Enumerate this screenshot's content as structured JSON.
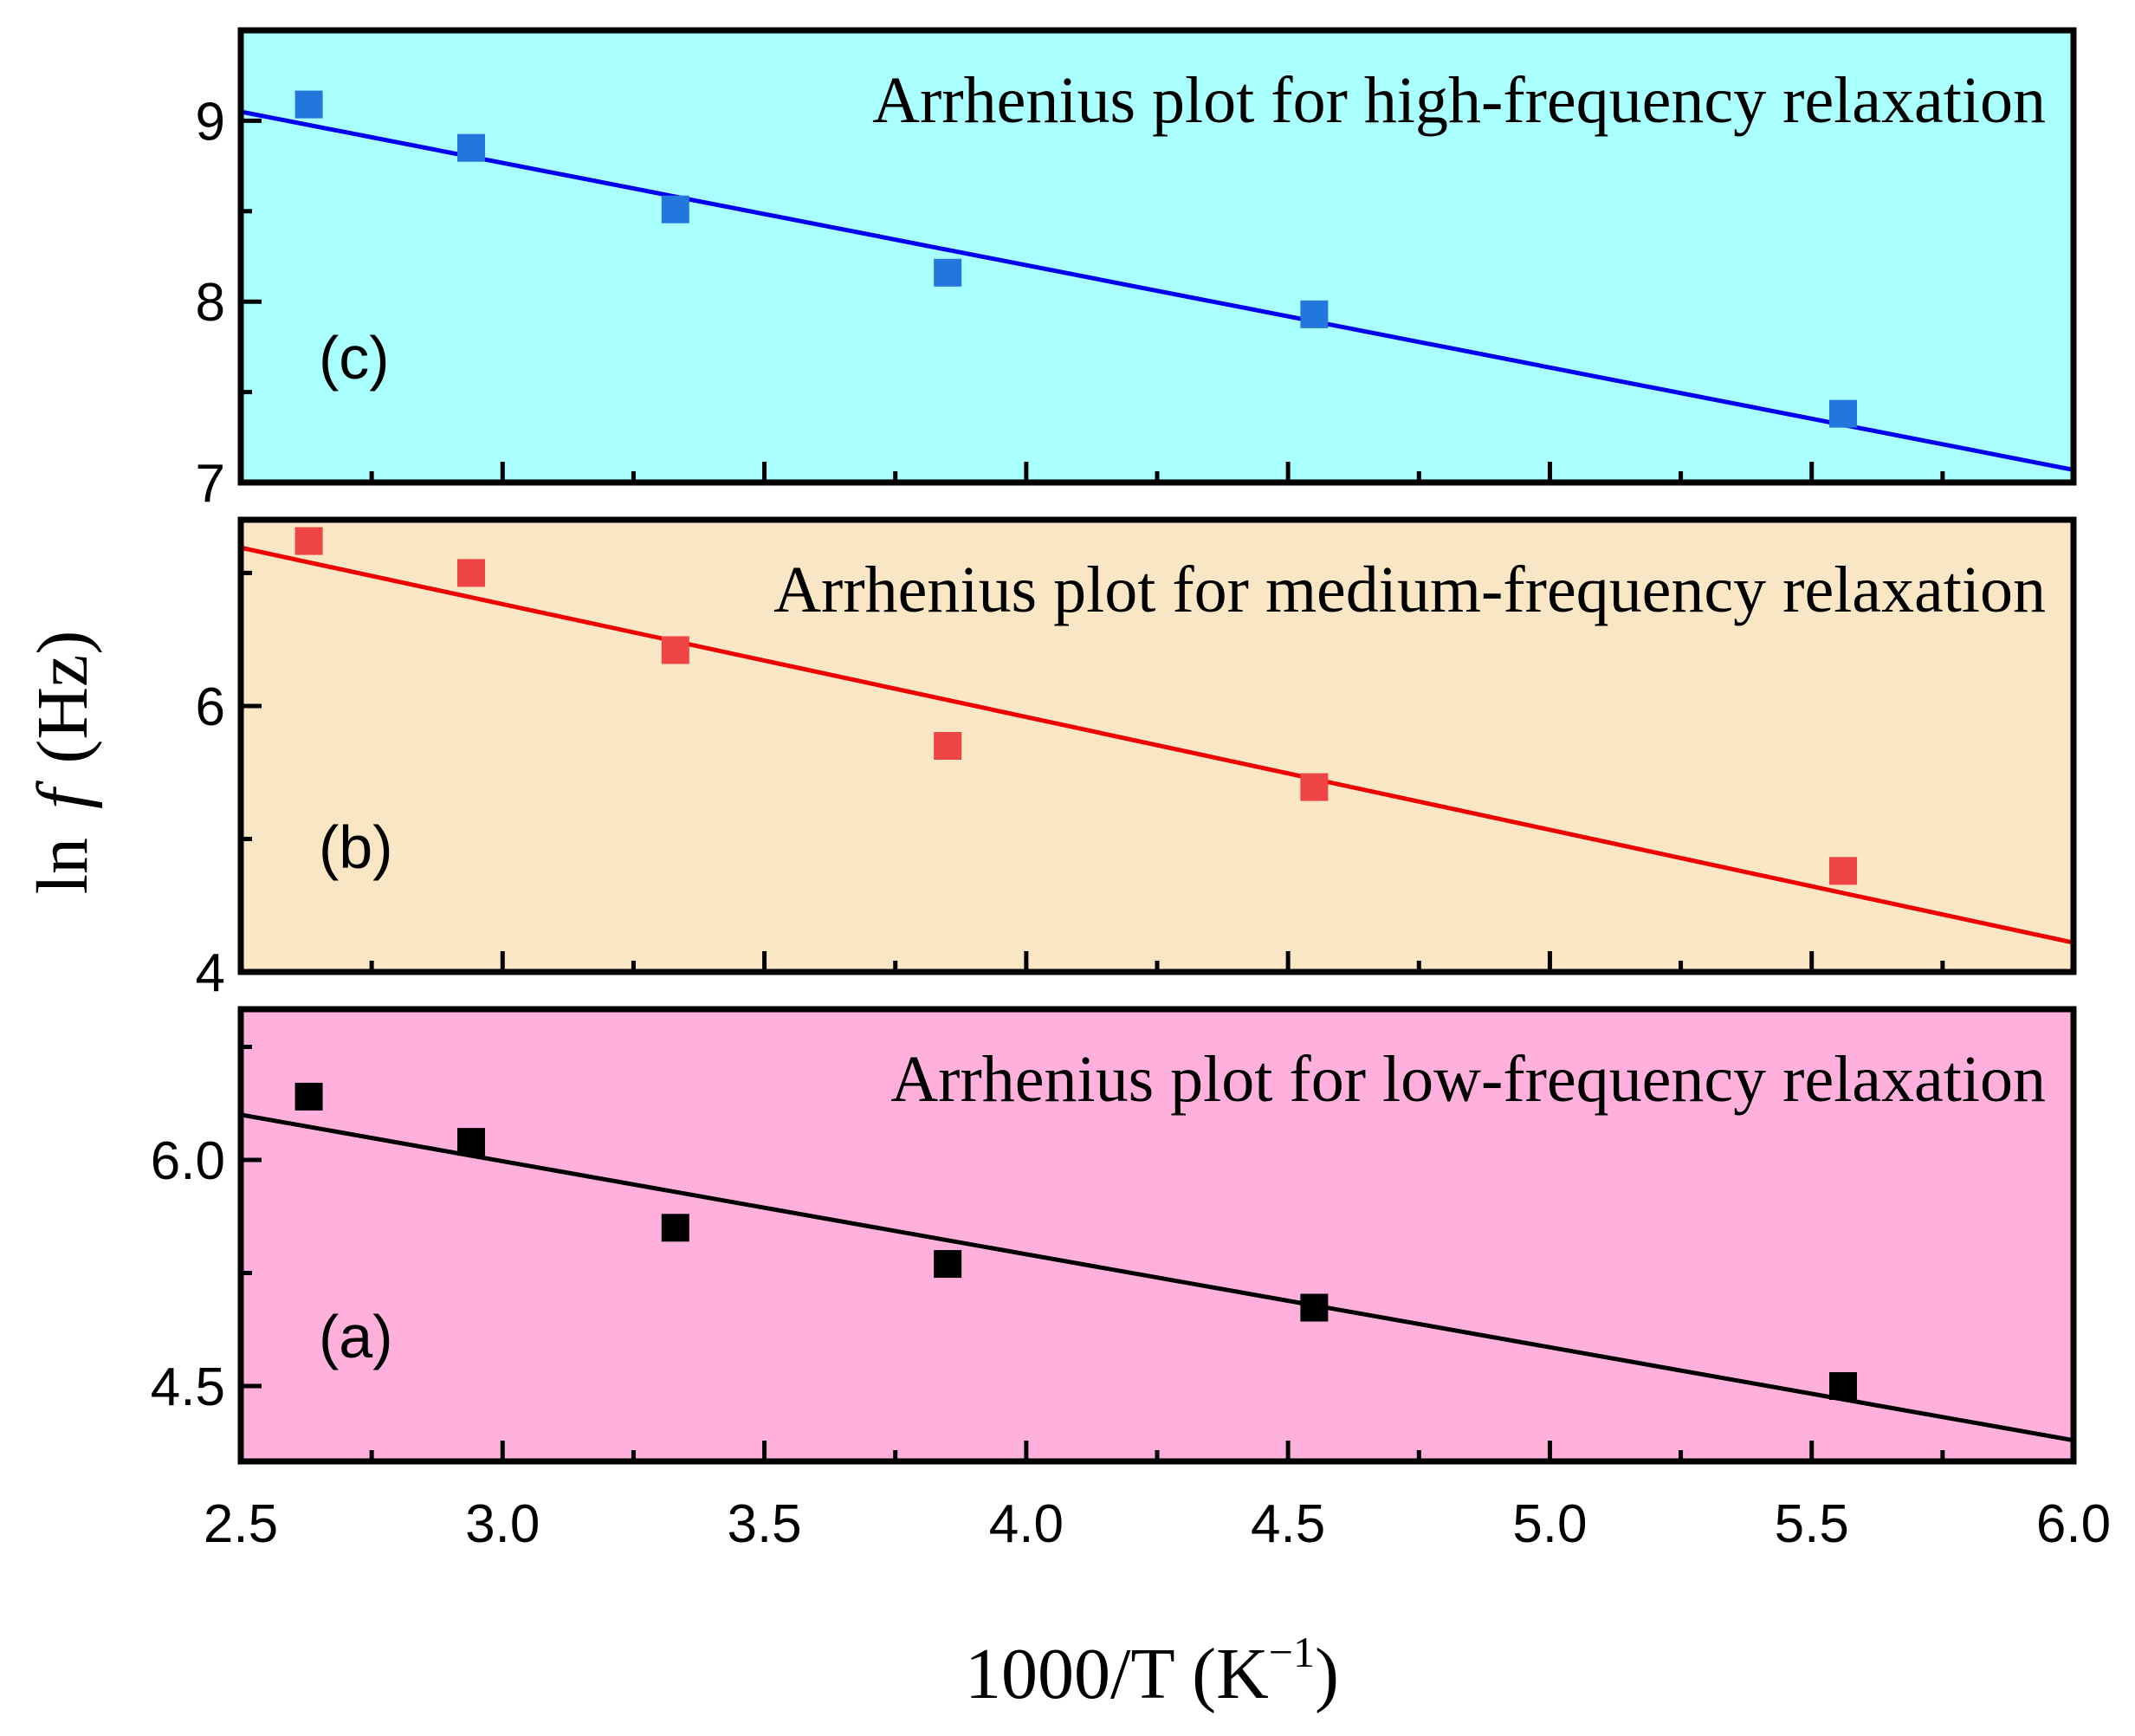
{
  "chart_data": {
    "type": "scatter",
    "xlabel_main": "1000/T (K",
    "xlabel_sup": "−1",
    "xlabel_close": ")",
    "ylabel_pre": "ln",
    "ylabel_f": "f",
    "ylabel_post": "(Hz)",
    "x_range": [
      2.5,
      6.0
    ],
    "x_ticks": [
      "2.5",
      "3.0",
      "3.5",
      "4.0",
      "4.5",
      "5.0",
      "5.5",
      "6.0"
    ],
    "x_tick_values": [
      2.5,
      3.0,
      3.5,
      4.0,
      4.5,
      5.0,
      5.5,
      6.0
    ],
    "panels": [
      {
        "id": "c",
        "label": "(c)",
        "title": "Arrhenius plot for high-frequency relaxation",
        "bg_color": "#aaffff",
        "marker_color": "#2277dd",
        "line_color": "#0000ee",
        "ylim": [
          7.0,
          9.5
        ],
        "y_ticks": [
          "7",
          "8",
          "9"
        ],
        "y_tick_values": [
          7,
          8,
          9
        ],
        "x": [
          2.63,
          2.94,
          3.33,
          3.85,
          4.55,
          5.56
        ],
        "y": [
          9.09,
          8.85,
          8.51,
          8.16,
          7.93,
          7.38
        ],
        "fit_line": {
          "x": [
            2.5,
            6.0
          ],
          "y": [
            9.05,
            7.07
          ]
        }
      },
      {
        "id": "b",
        "label": "(b)",
        "title": "Arrhenius plot for medium-frequency relaxation",
        "bg_color": "#f8e6c4",
        "marker_color": "#ee4444",
        "line_color": "#ee0000",
        "ylim": [
          4.0,
          7.4
        ],
        "y_ticks": [
          "4",
          "6"
        ],
        "y_tick_values": [
          4,
          6
        ],
        "x": [
          2.63,
          2.94,
          3.33,
          3.85,
          4.55,
          5.56
        ],
        "y": [
          7.24,
          7.0,
          6.42,
          5.7,
          5.39,
          4.76
        ],
        "fit_line": {
          "x": [
            2.5,
            6.0
          ],
          "y": [
            7.19,
            4.22
          ]
        }
      },
      {
        "id": "a",
        "label": "(a)",
        "title": "Arrhenius plot for low-frequency relaxation",
        "bg_color": "#ffb0dd",
        "marker_color": "#000000",
        "line_color": "#000000",
        "ylim": [
          4.0,
          7.0
        ],
        "y_ticks": [
          "4.5",
          "6.0"
        ],
        "y_tick_values": [
          4.5,
          6.0
        ],
        "x": [
          2.63,
          2.94,
          3.33,
          3.85,
          4.55,
          5.56
        ],
        "y": [
          6.42,
          6.12,
          5.55,
          5.31,
          5.02,
          4.5
        ],
        "fit_line": {
          "x": [
            2.5,
            6.0
          ],
          "y": [
            6.3,
            4.14
          ]
        }
      }
    ]
  }
}
